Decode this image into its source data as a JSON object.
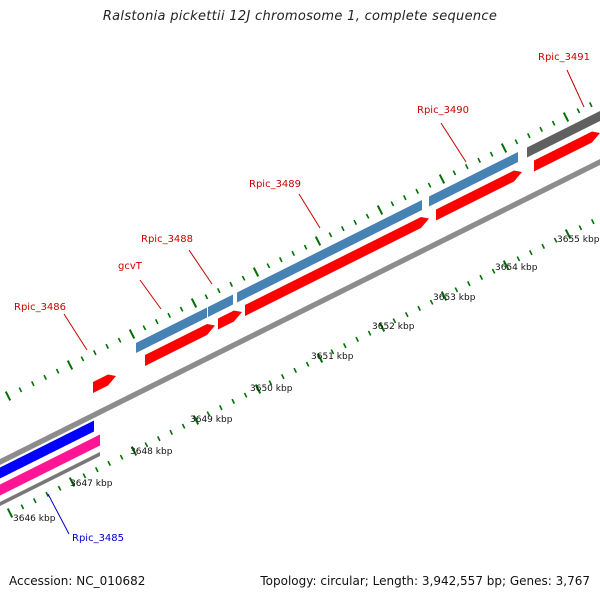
{
  "title": "Ralstonia pickettii 12J chromosome 1, complete sequence",
  "footer": {
    "accession": "Accession: NC_010682",
    "summary": "Topology: circular; Length: 3,942,557 bp; Genes: 3,767"
  },
  "colors": {
    "backbone": "#8c8c8c",
    "cds_forward": "#4682b4",
    "cds_reverse": "#ff0000",
    "gene_blue": "#0000ff",
    "gene_pink": "#ff1493",
    "gene_dark": "#505050",
    "tick": "#007000",
    "label_red": "#cc0000",
    "label_blue": "#0000cc"
  },
  "scale": {
    "ticks": [
      {
        "pos": 3646,
        "label": "3646 kbp"
      },
      {
        "pos": 3647,
        "label": "3647 kbp"
      },
      {
        "pos": 3648,
        "label": "3648 kbp"
      },
      {
        "pos": 3649,
        "label": "3649 kbp"
      },
      {
        "pos": 3650,
        "label": "3650 kbp"
      },
      {
        "pos": 3651,
        "label": "3651 kbp"
      },
      {
        "pos": 3652,
        "label": "3652 kbp"
      },
      {
        "pos": 3653,
        "label": "3653 kbp"
      },
      {
        "pos": 3654,
        "label": "3654 kbp"
      },
      {
        "pos": 3655,
        "label": "3655 kbp"
      }
    ]
  },
  "gene_labels": [
    {
      "name": "Rpic_3485",
      "color": "blue"
    },
    {
      "name": "Rpic_3486",
      "color": "red"
    },
    {
      "name": "gcvT",
      "color": "red"
    },
    {
      "name": "Rpic_3488",
      "color": "red"
    },
    {
      "name": "Rpic_3489",
      "color": "red"
    },
    {
      "name": "Rpic_3490",
      "color": "red"
    },
    {
      "name": "Rpic_3491",
      "color": "red"
    }
  ]
}
